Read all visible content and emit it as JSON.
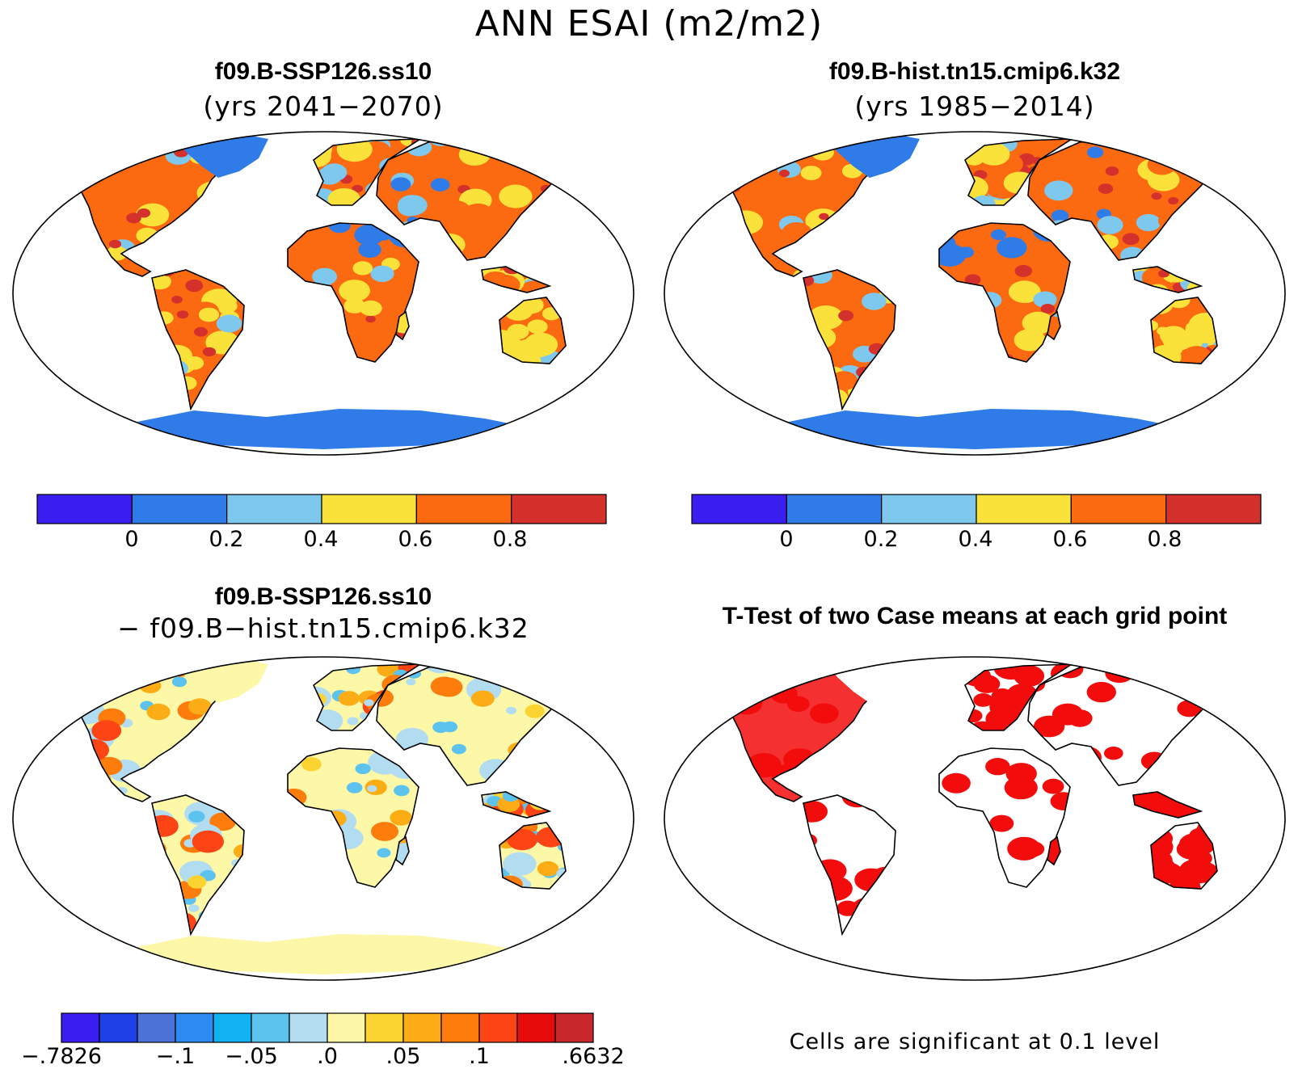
{
  "title": "ANN ESAI (m2/m2)",
  "panels": [
    {
      "id": "case",
      "title": "f09.B-SSP126.ss10",
      "subtitle": "(yrs 2041−2070)"
    },
    {
      "id": "control",
      "title": "f09.B-hist.tn15.cmip6.k32",
      "subtitle": "(yrs 1985−2014)"
    },
    {
      "id": "difference",
      "title": "f09.B-SSP126.ss10",
      "subtitle": "− f09.B−hist.tn15.cmip6.k32"
    },
    {
      "id": "ttest",
      "title": "T-Test of two Case means at each grid point",
      "subtitle": ""
    }
  ],
  "colorbars": {
    "value": {
      "colors": [
        "#3a1ef0",
        "#2f7be8",
        "#7ec8ee",
        "#fbe23a",
        "#fb6a10",
        "#d4302c"
      ],
      "labels": [
        "0",
        "0.2",
        "0.4",
        "0.6",
        "0.8"
      ]
    },
    "difference": {
      "colors": [
        "#3a1ef0",
        "#1f40e6",
        "#4c72d8",
        "#2d8af0",
        "#10b2f0",
        "#5cc2ee",
        "#b2dcf0",
        "#fdf7a8",
        "#fcd432",
        "#fcac14",
        "#fc7c0c",
        "#fc4414",
        "#e60c0c",
        "#c8282c"
      ],
      "labels": [
        "−.7826",
        "−.1",
        "−.05",
        ".0",
        ".05",
        ".1",
        ".6632"
      ]
    }
  },
  "significance_note": "Cells are significant at 0.1 level",
  "colors": {
    "ocean": "#ffffff",
    "outline": "#000000",
    "significant": "#f20c0c"
  }
}
